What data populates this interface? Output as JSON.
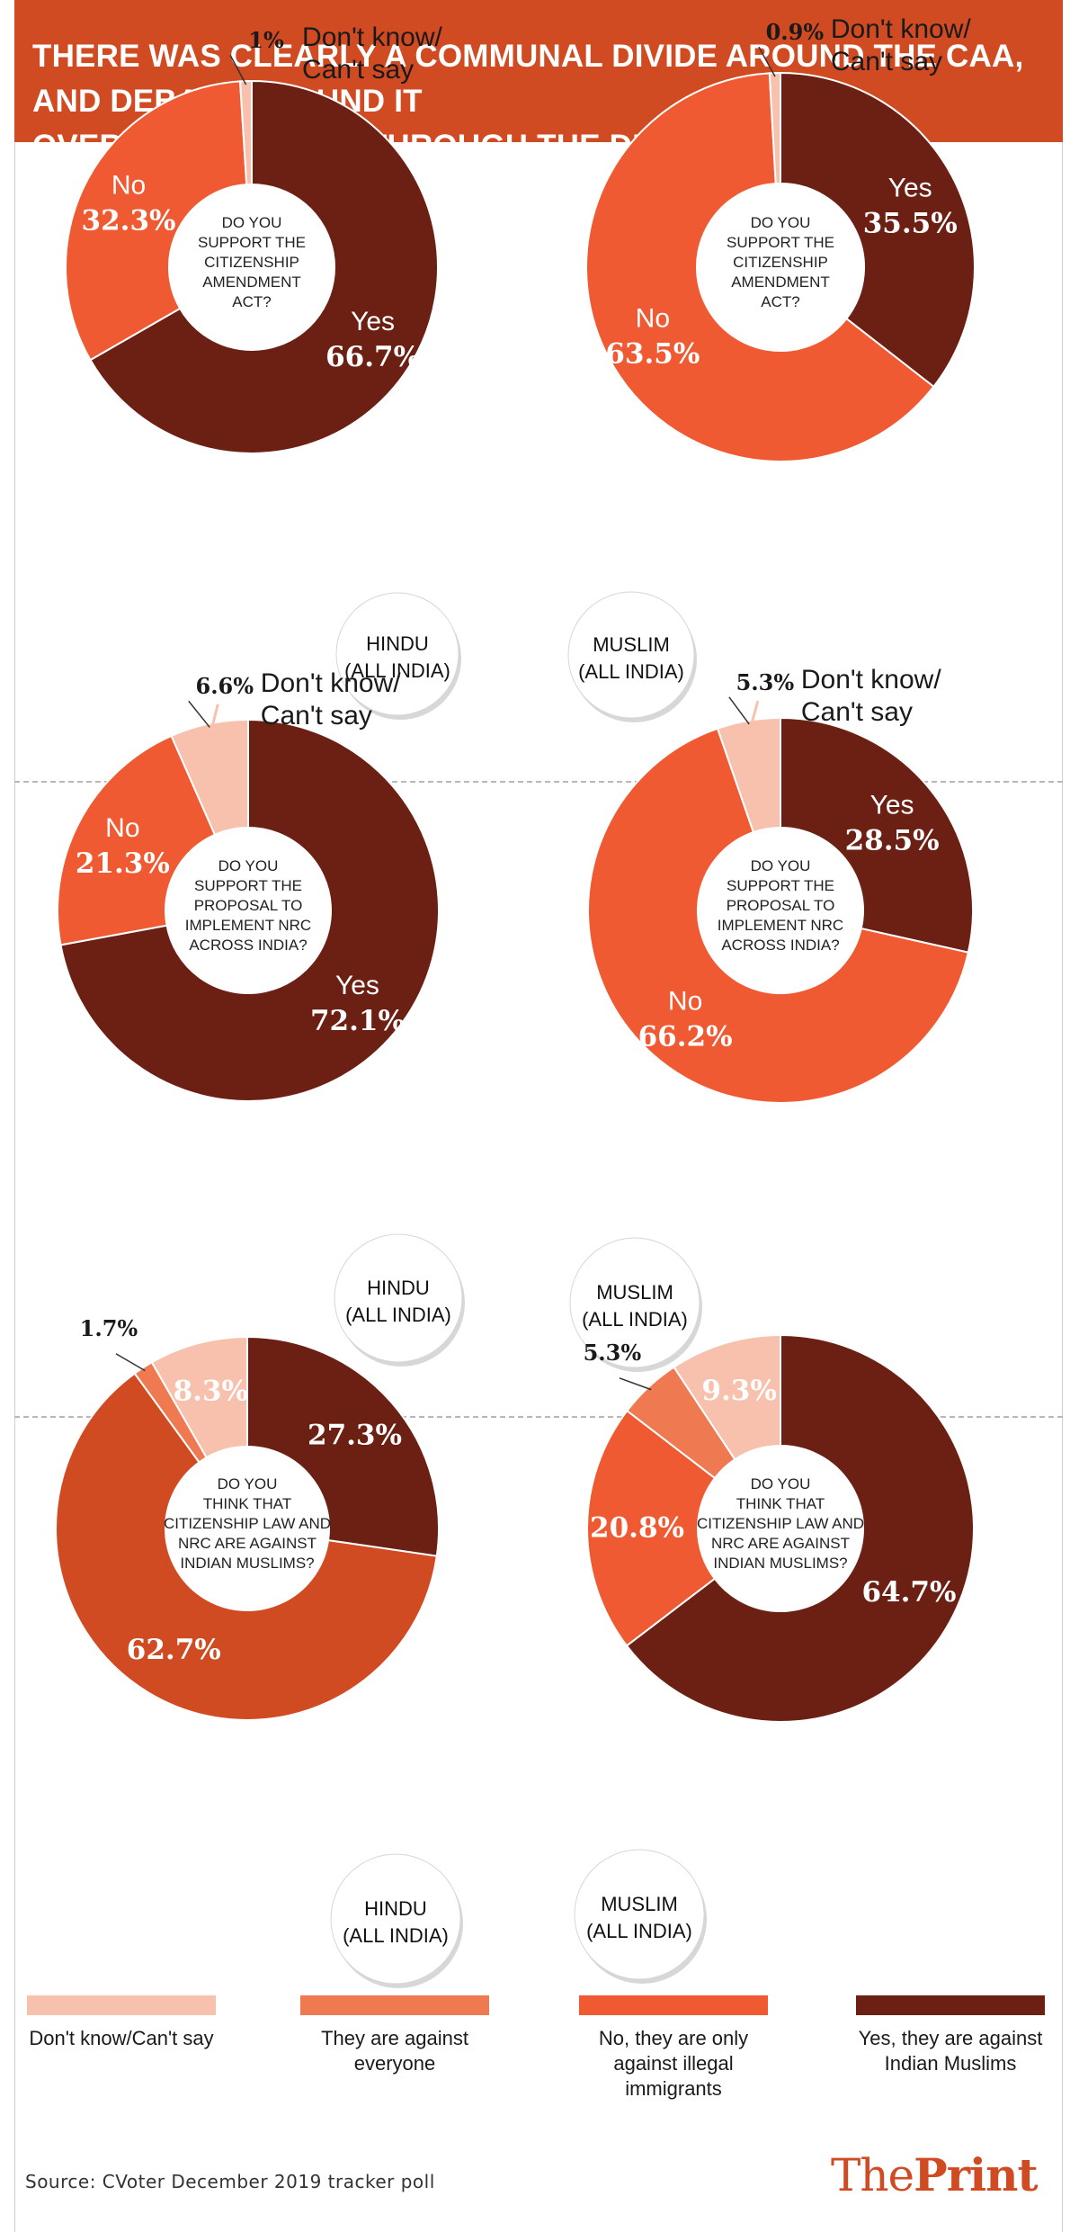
{
  "header": {
    "title_line1": "THERE WAS CLEARLY A COMMUNAL DIVIDE AROUND THE CAA, AND DEBATE AROUND IT",
    "title_line2": "OVERLAPPED RIGHT THROUGH THE DELHI  CAMPAIGN"
  },
  "colors": {
    "dont_know": "#f7c1ad",
    "against_everyone": "#ef7a52",
    "no": "#f05a32",
    "no_q3": "#d04a22",
    "yes": "#6b2013",
    "header": "#d04a22"
  },
  "chart_data": [
    {
      "type": "pie",
      "group": [
        "HINDU",
        "(ALL INDIA)"
      ],
      "question": [
        "DO YOU",
        "SUPPORT THE",
        "CITIZENSHIP",
        "AMENDMENT",
        "ACT?"
      ],
      "slices": [
        {
          "key": "yes",
          "name": "Yes",
          "value": 66.7,
          "label": "66.7%"
        },
        {
          "key": "no",
          "name": "No",
          "value": 32.3,
          "label": "32.3%"
        },
        {
          "key": "dont_know",
          "name": "Don't know/ Can't say",
          "value": 1.0,
          "label": "1%"
        }
      ]
    },
    {
      "type": "pie",
      "group": [
        "MUSLIM",
        "(ALL INDIA)"
      ],
      "question": [
        "DO YOU",
        "SUPPORT THE",
        "CITIZENSHIP",
        "AMENDMENT",
        "ACT?"
      ],
      "slices": [
        {
          "key": "yes",
          "name": "Yes",
          "value": 35.5,
          "label": "35.5%"
        },
        {
          "key": "no",
          "name": "No",
          "value": 63.5,
          "label": "63.5%"
        },
        {
          "key": "dont_know",
          "name": "Don't know/ Can't say",
          "value": 0.9,
          "label": "0.9%"
        }
      ]
    },
    {
      "type": "pie",
      "group": [
        "HINDU",
        "(ALL INDIA)"
      ],
      "question": [
        "DO YOU",
        "SUPPORT THE",
        "PROPOSAL TO",
        "IMPLEMENT NRC",
        "ACROSS INDIA?"
      ],
      "slices": [
        {
          "key": "yes",
          "name": "Yes",
          "value": 72.1,
          "label": "72.1%"
        },
        {
          "key": "no",
          "name": "No",
          "value": 21.3,
          "label": "21.3%"
        },
        {
          "key": "dont_know",
          "name": "Don't know/ Can't say",
          "value": 6.6,
          "label": "6.6%"
        }
      ]
    },
    {
      "type": "pie",
      "group": [
        "MUSLIM",
        "(ALL INDIA)"
      ],
      "question": [
        "DO YOU",
        "SUPPORT THE",
        "PROPOSAL TO",
        "IMPLEMENT NRC",
        "ACROSS INDIA?"
      ],
      "slices": [
        {
          "key": "yes",
          "name": "Yes",
          "value": 28.5,
          "label": "28.5%"
        },
        {
          "key": "no",
          "name": "No",
          "value": 66.2,
          "label": "66.2%"
        },
        {
          "key": "dont_know",
          "name": "Don't know/ Can't say",
          "value": 5.3,
          "label": "5.3%"
        }
      ]
    },
    {
      "type": "pie",
      "group": [
        "HINDU",
        "(ALL INDIA)"
      ],
      "question": [
        "DO YOU",
        "THINK THAT",
        "CITIZENSHIP LAW AND",
        "NRC ARE AGAINST",
        "INDIAN MUSLIMS?"
      ],
      "slices": [
        {
          "key": "yes",
          "name": "Yes, they are against Indian Muslims",
          "value": 27.3,
          "label": "27.3%"
        },
        {
          "key": "no_q3",
          "name": "No, they are only against illegal immigrants",
          "value": 62.7,
          "label": "62.7%"
        },
        {
          "key": "against_everyone",
          "name": "They are against everyone",
          "value": 1.7,
          "label": "1.7%"
        },
        {
          "key": "dont_know",
          "name": "Don't know/Can't say",
          "value": 8.3,
          "label": "8.3%"
        }
      ]
    },
    {
      "type": "pie",
      "group": [
        "MUSLIM",
        "(ALL INDIA)"
      ],
      "question": [
        "DO YOU",
        "THINK THAT",
        "CITIZENSHIP LAW AND",
        "NRC ARE AGAINST",
        "INDIAN MUSLIMS?"
      ],
      "slices": [
        {
          "key": "yes",
          "name": "Yes, they are against Indian Muslims",
          "value": 64.7,
          "label": "64.7%"
        },
        {
          "key": "no",
          "name": "No, they are only against illegal immigrants",
          "value": 20.8,
          "label": "20.8%"
        },
        {
          "key": "against_everyone",
          "name": "They are against everyone",
          "value": 5.3,
          "label": "5.3%"
        },
        {
          "key": "dont_know",
          "name": "Don't know/Can't say",
          "value": 9.3,
          "label": "9.3%"
        }
      ]
    }
  ],
  "dont_know_text": [
    "Don't know/",
    "Can't say"
  ],
  "legend": [
    {
      "key": "dont_know",
      "color": "#f7c1ad",
      "text": "Don't know/Can't say"
    },
    {
      "key": "against_everyone",
      "color": "#ef7a52",
      "text": "They are against everyone"
    },
    {
      "key": "no",
      "color": "#f05a32",
      "text": "No, they are only against illegal immigrants"
    },
    {
      "key": "yes",
      "color": "#6b2013",
      "text": "Yes, they are against Indian Muslims"
    }
  ],
  "footer": {
    "source": "Source: CVoter December 2019 tracker poll",
    "logo_a": "The",
    "logo_b": "Print"
  }
}
